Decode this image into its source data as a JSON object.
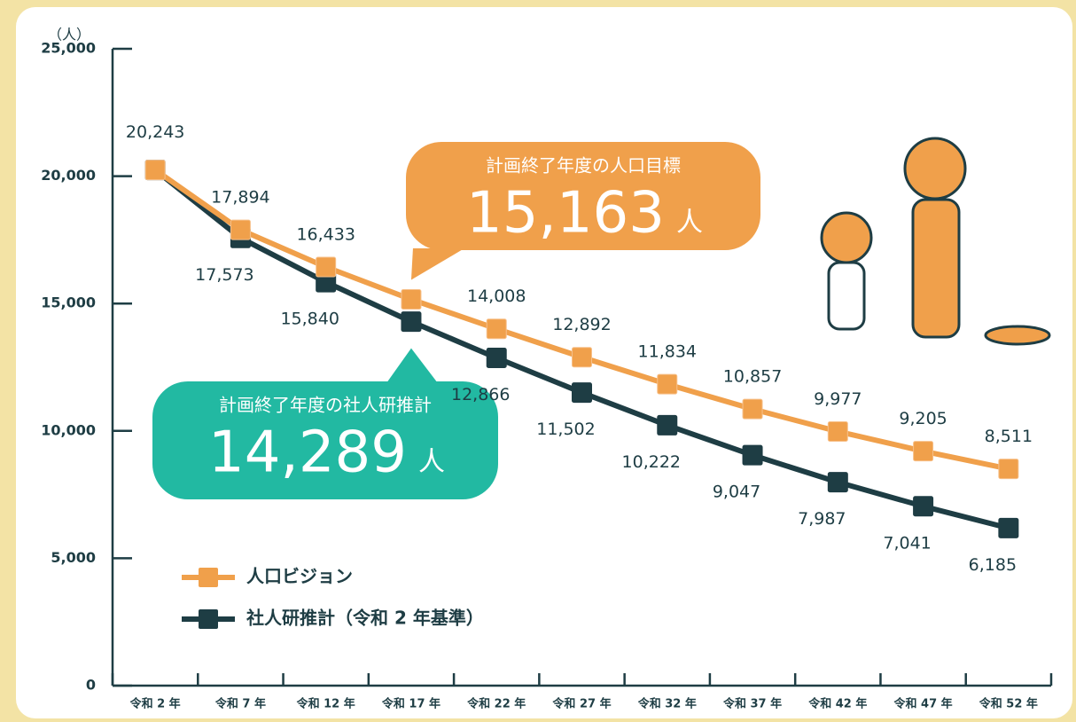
{
  "chart_data": {
    "type": "line",
    "y_label": "（人）",
    "categories": [
      "令和 2 年",
      "令和 7 年",
      "令和 12 年",
      "令和 17 年",
      "令和 22 年",
      "令和 27 年",
      "令和 32 年",
      "令和 37 年",
      "令和 42 年",
      "令和 47 年",
      "令和 52 年"
    ],
    "series": [
      {
        "name": "人口ビジョン",
        "color": "#f0a04b",
        "values": [
          20243,
          17894,
          16433,
          15163,
          14008,
          12892,
          11834,
          10857,
          9977,
          9205,
          8511
        ],
        "value_labels": [
          "20,243",
          "17,894",
          "16,433",
          null,
          "14,008",
          "12,892",
          "11,834",
          "10,857",
          "9,977",
          "9,205",
          "8,511"
        ]
      },
      {
        "name": "社人研推計（令和 2 年基準）",
        "color": "#1e3d44",
        "values": [
          20243,
          17573,
          15840,
          14289,
          12866,
          11502,
          10222,
          9047,
          7987,
          7041,
          6185
        ],
        "value_labels": [
          null,
          "17,573",
          "15,840",
          null,
          "12,866",
          "11,502",
          "10,222",
          "9,047",
          "7,987",
          "7,041",
          "6,185"
        ]
      }
    ],
    "ylim": [
      0,
      25000
    ],
    "yticks": [
      0,
      {
        "value": 5000,
        "label": "5,000"
      },
      {
        "value": 10000,
        "label": "10,000"
      },
      {
        "value": 15000,
        "label": "15,000"
      },
      {
        "value": 20000,
        "label": "20,000"
      },
      {
        "value": 25000,
        "label": "25,000"
      }
    ],
    "annotations": [
      {
        "text": "計画終了年度の人口目標",
        "value": 15163,
        "value_label": "15,163",
        "unit": "人",
        "color": "#f0a04b"
      },
      {
        "text": "計画終了年度の社人研推計",
        "value": 14289,
        "value_label": "14,289",
        "unit": "人",
        "color": "#22b9a2"
      }
    ]
  }
}
